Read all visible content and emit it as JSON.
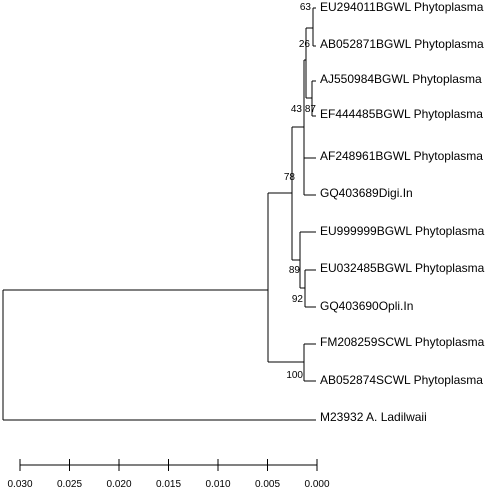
{
  "tree": {
    "leaves": [
      {
        "id": "l1",
        "label": "EU294011BGWL Phytoplasma"
      },
      {
        "id": "l2",
        "label": "AB052871BGWL Phytoplasma"
      },
      {
        "id": "l3",
        "label": "AJ550984BGWL Phytoplasma"
      },
      {
        "id": "l4",
        "label": "EF444485BGWL Phytoplasma"
      },
      {
        "id": "l5",
        "label": "AF248961BGWL Phytoplasma"
      },
      {
        "id": "l6",
        "label": "GQ403689Digi.In"
      },
      {
        "id": "l7",
        "label": "EU999999BGWL Phytoplasma"
      },
      {
        "id": "l8",
        "label": "EU032485BGWL Phytoplasma"
      },
      {
        "id": "l9",
        "label": "GQ403690Opli.In"
      },
      {
        "id": "l10",
        "label": "FM208259SCWL Phytoplasma"
      },
      {
        "id": "l11",
        "label": "AB052874SCWL Phytoplasma"
      },
      {
        "id": "l12",
        "label": "M23932 A. Ladilwaii"
      }
    ],
    "bootstrap": [
      {
        "id": "n1",
        "value": "63"
      },
      {
        "id": "n2",
        "value": "26"
      },
      {
        "id": "n3",
        "value": "87"
      },
      {
        "id": "n4",
        "value": "43"
      },
      {
        "id": "n5",
        "value": "78"
      },
      {
        "id": "n6",
        "value": "89"
      },
      {
        "id": "n7",
        "value": "92"
      },
      {
        "id": "n8",
        "value": "100"
      }
    ]
  },
  "scale": {
    "ticks": [
      "0.030",
      "0.025",
      "0.020",
      "0.015",
      "0.010",
      "0.005",
      "0.000"
    ]
  }
}
